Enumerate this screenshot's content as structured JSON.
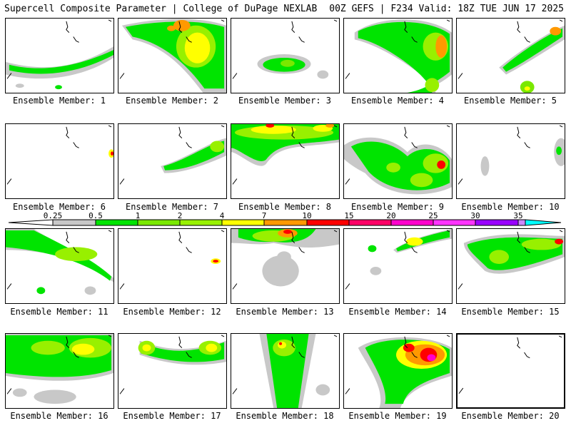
{
  "header": {
    "left": "Supercell Composite Parameter | College of DuPage NEXLAB",
    "right": "00Z GEFS | F234 Valid: 18Z TUE JUN 17 2025"
  },
  "colors": {
    "0.25": "#c8c8c8",
    "0.5": "#00e400",
    "1": "#7ae800",
    "2": "#98f000",
    "4": "#ffff00",
    "7": "#ff9900",
    "10": "#ff0000",
    "15": "#ff0066",
    "20": "#ff00cc",
    "25": "#ff33ff",
    "30": "#9900ff",
    "35": "#cc88ff",
    "top": "#00ffff"
  },
  "chart_data": {
    "type": "heatmap",
    "title": "Supercell Composite Parameter",
    "colorbar_ticks": [
      "0.25",
      "0.5",
      "1",
      "2",
      "4",
      "7",
      "10",
      "15",
      "20",
      "25",
      "30",
      "35"
    ],
    "members": [
      {
        "label": "Ensemble Member: 1",
        "max_level": 1
      },
      {
        "label": "Ensemble Member: 2",
        "max_level": 7
      },
      {
        "label": "Ensemble Member: 3",
        "max_level": 1
      },
      {
        "label": "Ensemble Member: 4",
        "max_level": 7
      },
      {
        "label": "Ensemble Member: 5",
        "max_level": 7
      },
      {
        "label": "Ensemble Member: 6",
        "max_level": 10
      },
      {
        "label": "Ensemble Member: 7",
        "max_level": 2
      },
      {
        "label": "Ensemble Member: 8",
        "max_level": 10
      },
      {
        "label": "Ensemble Member: 9",
        "max_level": 10
      },
      {
        "label": "Ensemble Member: 10",
        "max_level": 1
      },
      {
        "label": "Ensemble Member: 11",
        "max_level": 2
      },
      {
        "label": "Ensemble Member: 12",
        "max_level": 10
      },
      {
        "label": "Ensemble Member: 13",
        "max_level": 10
      },
      {
        "label": "Ensemble Member: 14",
        "max_level": 2
      },
      {
        "label": "Ensemble Member: 15",
        "max_level": 10
      },
      {
        "label": "Ensemble Member: 16",
        "max_level": 4
      },
      {
        "label": "Ensemble Member: 17",
        "max_level": 4
      },
      {
        "label": "Ensemble Member: 18",
        "max_level": 10
      },
      {
        "label": "Ensemble Member: 19",
        "max_level": 20
      },
      {
        "label": "Ensemble Member: 20",
        "max_level": 0
      }
    ]
  }
}
